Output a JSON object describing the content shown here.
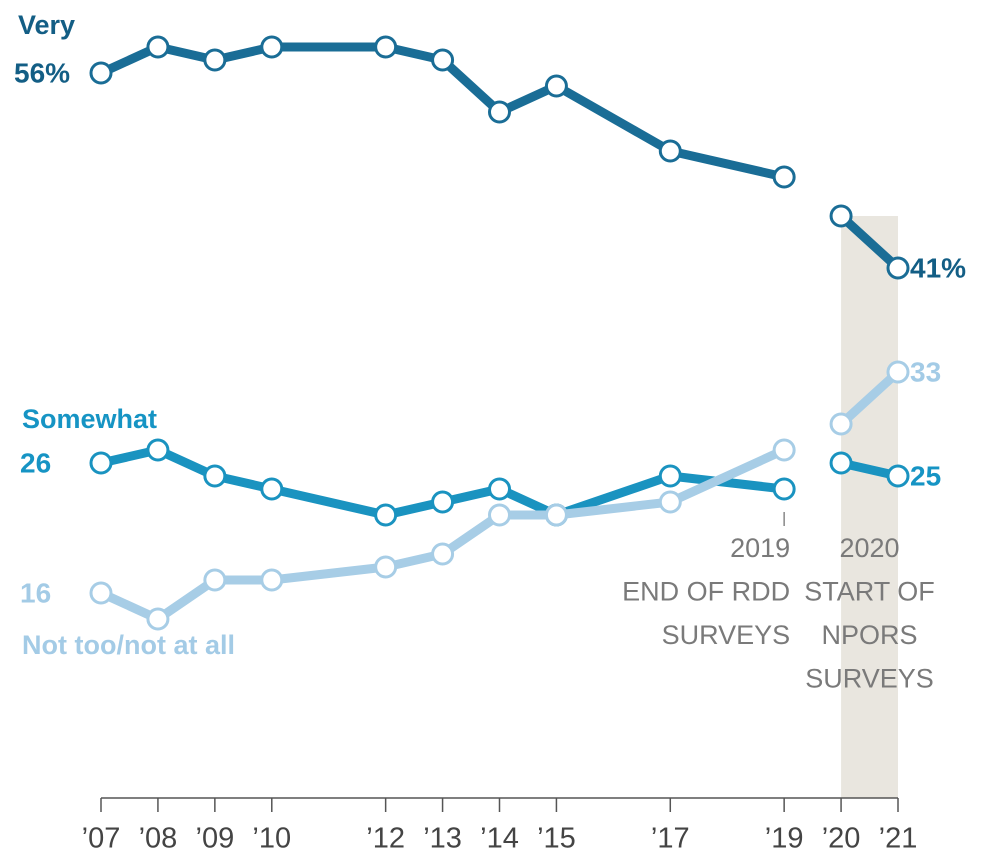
{
  "chart_data": {
    "type": "line",
    "x": [
      2007,
      2008,
      2009,
      2010,
      2012,
      2013,
      2014,
      2015,
      2017,
      2019,
      2020,
      2021
    ],
    "line_break_after": 2019,
    "series": [
      {
        "name": "Very",
        "color": "#1a6d96",
        "label_color": "#135e85",
        "values": [
          56,
          58,
          57,
          58,
          58,
          57,
          53,
          55,
          50,
          48,
          45,
          41
        ],
        "value_labels": [
          "56%",
          null,
          null,
          null,
          null,
          null,
          null,
          null,
          null,
          null,
          null,
          "41%"
        ]
      },
      {
        "name": "Somewhat",
        "color": "#1a93c0",
        "label_color": "#1694c4",
        "values": [
          26,
          27,
          25,
          24,
          22,
          23,
          24,
          22,
          25,
          24,
          26,
          25
        ],
        "value_labels": [
          "26",
          null,
          null,
          null,
          null,
          null,
          null,
          null,
          null,
          null,
          null,
          "25"
        ]
      },
      {
        "name": "Not too/not at all",
        "color": "#a7cde6",
        "label_color": "#a3cbe6",
        "values": [
          16,
          14,
          17,
          17,
          18,
          19,
          22,
          22,
          23,
          27,
          29,
          33
        ],
        "value_labels": [
          "16",
          null,
          null,
          null,
          null,
          null,
          null,
          null,
          null,
          null,
          null,
          "33"
        ]
      }
    ],
    "xlim": [
      2007,
      2021
    ],
    "ylim": [
      0,
      60
    ],
    "xticks": [
      {
        "value": 2007,
        "label": "’07"
      },
      {
        "value": 2008,
        "label": "’08"
      },
      {
        "value": 2009,
        "label": "’09"
      },
      {
        "value": 2010,
        "label": "’10"
      },
      {
        "value": 2012,
        "label": "’12"
      },
      {
        "value": 2013,
        "label": "’13"
      },
      {
        "value": 2014,
        "label": "’14"
      },
      {
        "value": 2015,
        "label": "’15"
      },
      {
        "value": 2017,
        "label": "’17"
      },
      {
        "value": 2019,
        "label": "’19"
      },
      {
        "value": 2020,
        "label": "’20"
      },
      {
        "value": 2021,
        "label": "’21"
      }
    ],
    "annotations": [
      {
        "x": 2019,
        "lines": [
          "2019",
          "END OF RDD",
          "SURVEYS"
        ]
      },
      {
        "x": 2020,
        "lines": [
          "2020",
          "START OF",
          "NPORS",
          "SURVEYS"
        ],
        "shade_to": 2021
      }
    ]
  }
}
